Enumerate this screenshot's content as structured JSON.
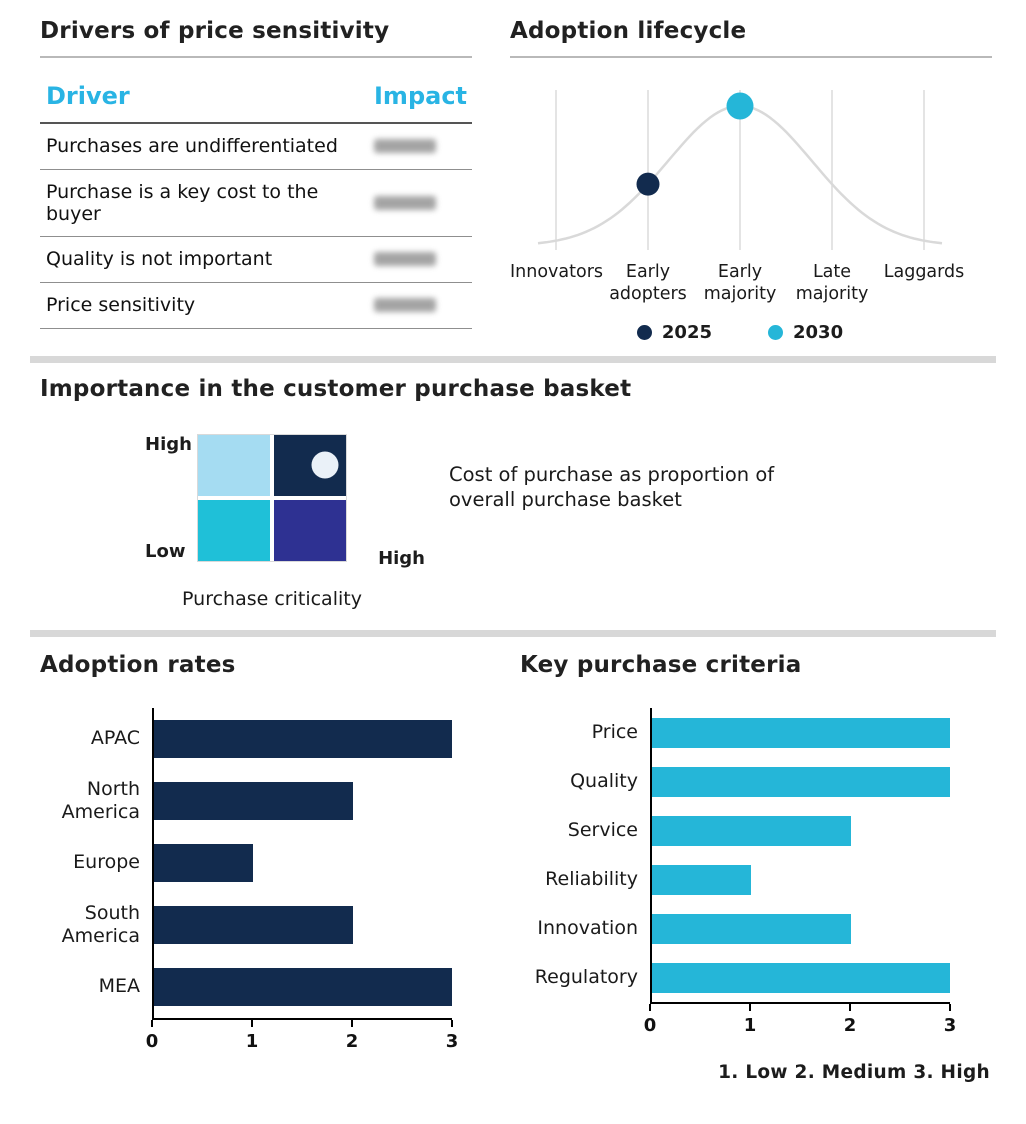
{
  "colors": {
    "navy": "#122B4E",
    "cyan": "#25B6D8",
    "cyan_header_text": "#29B4E4",
    "indigo": "#2E3192",
    "light_blue": "#A5DCF2",
    "curve_grey": "#D9D9D9",
    "divider_grey": "#D8D8D8"
  },
  "drivers_table": {
    "title": "Drivers of price sensitivity",
    "columns": {
      "driver": "Driver",
      "impact": "Impact"
    },
    "rows": [
      {
        "driver": "Purchases are undifferentiated",
        "impact_redacted": true
      },
      {
        "driver": "Purchase is a key cost to the buyer",
        "impact_redacted": true
      },
      {
        "driver": "Quality is not important",
        "impact_redacted": true
      },
      {
        "driver": "Price sensitivity",
        "impact_redacted": true
      }
    ]
  },
  "lifecycle": {
    "title": "Adoption lifecycle",
    "categories": [
      "Innovators",
      "Early adopters",
      "Early majority",
      "Late majority",
      "Laggards"
    ],
    "points": [
      {
        "year": "2025",
        "category": "Early adopters"
      },
      {
        "year": "2030",
        "category": "Early majority"
      }
    ],
    "legend": [
      {
        "label": "2025",
        "color": "#122B4E"
      },
      {
        "label": "2030",
        "color": "#25B6D8"
      }
    ]
  },
  "basket": {
    "title": "Importance in the customer purchase basket",
    "y_axis_top": "High",
    "y_axis_bottom": "Low",
    "x_axis_right": "High",
    "x_axis_label": "Purchase criticality",
    "caption": "Cost of purchase as proportion of overall purchase basket"
  },
  "adoption": {
    "title": "Adoption rates",
    "categories": [
      "APAC",
      "North America",
      "Europe",
      "South America",
      "MEA"
    ],
    "values": [
      3,
      2,
      1,
      2,
      3
    ],
    "xmax": 3,
    "ticks": [
      "0",
      "1",
      "2",
      "3"
    ]
  },
  "criteria": {
    "title": "Key purchase criteria",
    "categories": [
      "Price",
      "Quality",
      "Service",
      "Reliability",
      "Innovation",
      "Regulatory"
    ],
    "values": [
      3,
      3,
      2,
      1,
      2,
      3
    ],
    "xmax": 3,
    "ticks": [
      "0",
      "1",
      "2",
      "3"
    ],
    "scale_note": "1. Low  2. Medium  3. High"
  },
  "chart_data": [
    {
      "type": "table",
      "title": "Drivers of price sensitivity",
      "columns": [
        "Driver",
        "Impact"
      ],
      "rows": [
        [
          "Purchases are undifferentiated",
          ""
        ],
        [
          "Purchase is a key cost to the buyer",
          ""
        ],
        [
          "Quality is not important",
          ""
        ],
        [
          "Price sensitivity",
          ""
        ]
      ],
      "note": "Impact column values are blurred/redacted in the image"
    },
    {
      "type": "scatter",
      "title": "Adoption lifecycle",
      "x_categories": [
        "Innovators",
        "Early adopters",
        "Early majority",
        "Late majority",
        "Laggards"
      ],
      "background": "grey bell curve peaking at Early majority",
      "series": [
        {
          "name": "2025",
          "x": "Early adopters",
          "color": "#122B4E"
        },
        {
          "name": "2030",
          "x": "Early majority",
          "color": "#25B6D8"
        }
      ],
      "legend_position": "bottom",
      "grid": "vertical lines at each category"
    },
    {
      "type": "heatmap",
      "title": "Importance in the customer purchase basket",
      "layout": "2x2 quadrant matrix",
      "xlabel": "Purchase criticality",
      "x_range": [
        "Low",
        "High"
      ],
      "y_range": [
        "Low",
        "High"
      ],
      "marker": "white dot in high-criticality / high-importance quadrant",
      "annotation": "Cost of purchase as proportion of overall purchase basket"
    },
    {
      "type": "bar",
      "title": "Adoption rates",
      "orientation": "horizontal",
      "categories": [
        "APAC",
        "North America",
        "Europe",
        "South America",
        "MEA"
      ],
      "values": [
        3,
        2,
        1,
        2,
        3
      ],
      "xlim": [
        0,
        3
      ],
      "xticks": [
        0,
        1,
        2,
        3
      ]
    },
    {
      "type": "bar",
      "title": "Key purchase criteria",
      "orientation": "horizontal",
      "categories": [
        "Price",
        "Quality",
        "Service",
        "Reliability",
        "Innovation",
        "Regulatory"
      ],
      "values": [
        3,
        3,
        2,
        1,
        2,
        3
      ],
      "xlim": [
        0,
        3
      ],
      "xticks": [
        0,
        1,
        2,
        3
      ],
      "note": "1. Low  2. Medium  3. High"
    }
  ]
}
